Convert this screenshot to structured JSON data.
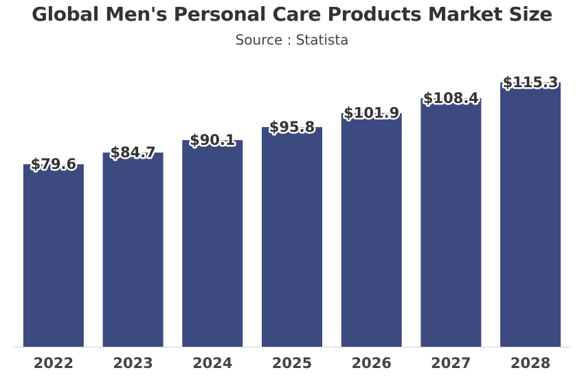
{
  "chart_data": {
    "type": "bar",
    "title": "Global Men's Personal Care Products Market Size",
    "subtitle": "Source : Statista",
    "xlabel": "",
    "ylabel": "",
    "categories": [
      "2022",
      "2023",
      "2024",
      "2025",
      "2026",
      "2027",
      "2028"
    ],
    "values": [
      79.6,
      84.7,
      90.1,
      95.8,
      101.9,
      108.4,
      115.3
    ],
    "value_labels": [
      "$79.6",
      "$84.7",
      "$90.1",
      "$95.8",
      "$101.9",
      "$108.4",
      "$115.3"
    ],
    "ylim": [
      0,
      115.3
    ],
    "grid": false,
    "legend": "none",
    "bar_color": "#3d4a80"
  }
}
